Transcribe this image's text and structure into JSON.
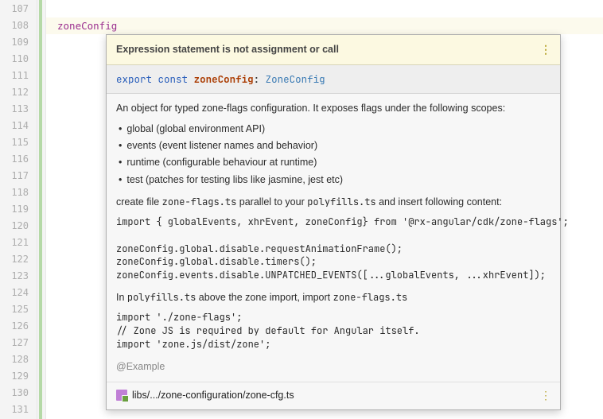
{
  "gutter": {
    "start": 107,
    "end": 131
  },
  "code": {
    "token": "zoneConfig"
  },
  "popup": {
    "warning": "Expression statement is not assignment or call",
    "signature": {
      "export": "export",
      "const": "const",
      "name": "zoneConfig",
      "sep": ":",
      "type": "ZoneConfig"
    },
    "desc": "An object for typed zone-flags configuration. It exposes flags under the following scopes:",
    "scopes": [
      "global (global environment API)",
      "events (event listener names and behavior)",
      "runtime (configurable behaviour at runtime)",
      "test (patches for testing libs like jasmine, jest etc)"
    ],
    "create_pre": "create file ",
    "create_file": "zone-flags.ts",
    "create_mid": " parallel to your ",
    "create_poly": "polyfills.ts",
    "create_post": " and insert following content:",
    "code1": "import { globalEvents, xhrEvent, zoneConfig} from '@rx-angular/cdk/zone-flags';\n\nzoneConfig.global.disable.requestAnimationFrame();\nzoneConfig.global.disable.timers();\nzoneConfig.events.disable.UNPATCHED_EVENTS([...globalEvents, ...xhrEvent]);",
    "poly_pre": "In ",
    "poly_file": "polyfills.ts",
    "poly_mid": " above the zone import, import ",
    "poly_flag": "zone-flags.ts",
    "code2": "import './zone-flags';\n// Zone JS is required by default for Angular itself.\nimport 'zone.js/dist/zone';",
    "example": "@Example",
    "footer_path": "libs/.../zone-configuration/zone-cfg.ts"
  },
  "colors": {
    "gutter_bg": "#f4f4f4",
    "ident": "#9b2f8f",
    "warn_bg": "#fcf9e1",
    "sig_bg": "#eeeeee",
    "body_bg": "#f7f7f7",
    "kw": "#2a5fbb",
    "name": "#aa3b01",
    "type": "#3b7bb4"
  }
}
